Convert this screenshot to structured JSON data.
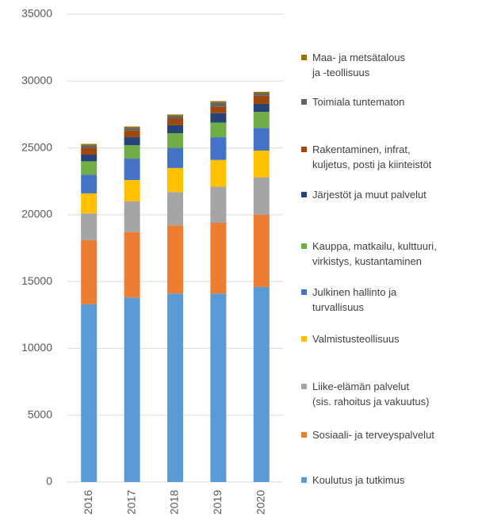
{
  "chart_data": {
    "type": "stacked_bar",
    "categories": [
      "2016",
      "2017",
      "2018",
      "2019",
      "2020"
    ],
    "series": [
      {
        "name": "Koulutus ja tutkimus",
        "color": "#5b9bd5",
        "values": [
          13300,
          13800,
          14100,
          14100,
          14600
        ]
      },
      {
        "name": "Sosiaali- ja terveyspalvelut",
        "color": "#ed7d31",
        "values": [
          4800,
          4900,
          5100,
          5300,
          5400
        ]
      },
      {
        "name": "Liike-elämän palvelut\n(sis. rahoitus ja vakuutus)",
        "color": "#a5a5a5",
        "values": [
          2000,
          2300,
          2500,
          2700,
          2800
        ]
      },
      {
        "name": "Valmistusteollisuus",
        "color": "#ffc000",
        "values": [
          1500,
          1600,
          1800,
          2000,
          2000
        ]
      },
      {
        "name": "Julkinen hallinto ja\nturvallisuus",
        "color": "#4472c4",
        "values": [
          1400,
          1600,
          1500,
          1700,
          1700
        ]
      },
      {
        "name": "Kauppa, matkailu, kulttuuri,\nvirkistys, kustantaminen",
        "color": "#70ad47",
        "values": [
          1000,
          1000,
          1100,
          1100,
          1200
        ]
      },
      {
        "name": "Järjestöt ja muut palvelut",
        "color": "#264478",
        "values": [
          500,
          600,
          600,
          700,
          600
        ]
      },
      {
        "name": "Rakentaminen, infrat,\nkuljetus, posti ja kiinteistöt",
        "color": "#9e480e",
        "values": [
          500,
          500,
          500,
          500,
          600
        ]
      },
      {
        "name": "Toimiala tuntematon",
        "color": "#636363",
        "values": [
          200,
          200,
          200,
          300,
          200
        ]
      },
      {
        "name": "Maa- ja metsätalous\nja -teollisuus",
        "color": "#997300",
        "values": [
          100,
          100,
          100,
          100,
          100
        ]
      }
    ],
    "ylim": [
      0,
      35000
    ],
    "yticks": [
      0,
      5000,
      10000,
      15000,
      20000,
      25000,
      30000,
      35000
    ],
    "grid": true,
    "legend": "right"
  }
}
